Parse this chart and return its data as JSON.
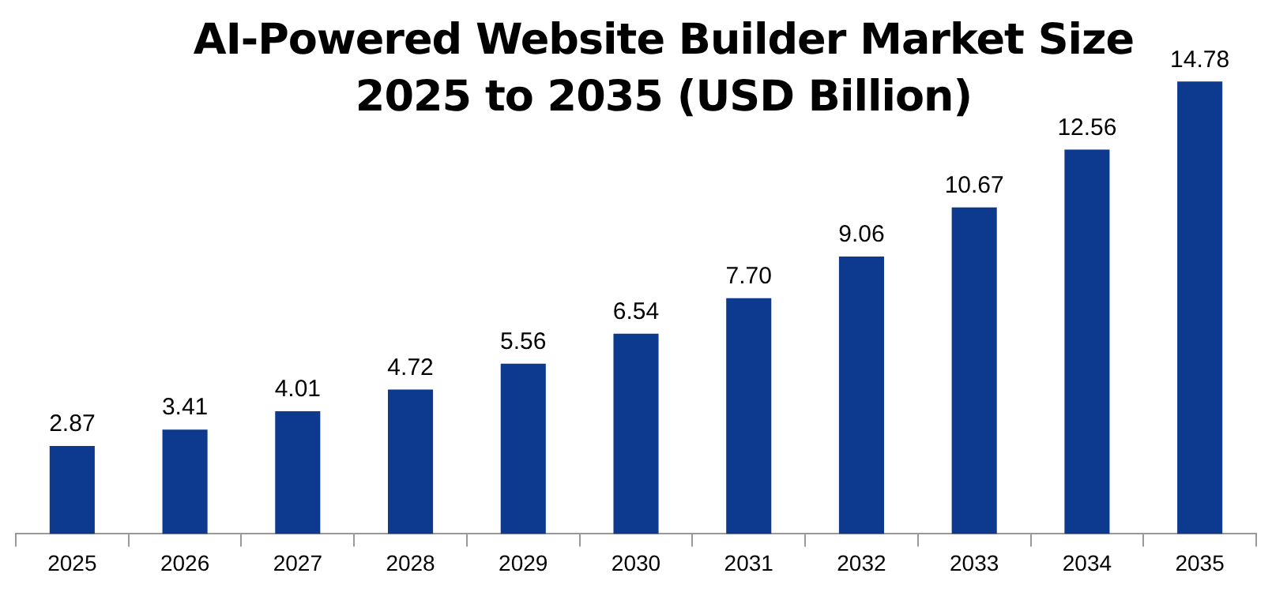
{
  "chart_data": {
    "type": "bar",
    "title": "AI-Powered Website Builder Market Size 2025 to 2035 (USD Billion)",
    "categories": [
      "2025",
      "2026",
      "2027",
      "2028",
      "2029",
      "2030",
      "2031",
      "2032",
      "2033",
      "2034",
      "2035"
    ],
    "values": [
      2.87,
      3.41,
      4.01,
      4.72,
      5.56,
      6.54,
      7.7,
      9.06,
      10.67,
      12.56,
      14.78
    ],
    "value_labels": [
      "2.87",
      "3.41",
      "4.01",
      "4.72",
      "5.56",
      "6.54",
      "7.70",
      "9.06",
      "10.67",
      "12.56",
      "14.78"
    ],
    "color": "#0d3a8e",
    "grid": false,
    "legend": false
  }
}
